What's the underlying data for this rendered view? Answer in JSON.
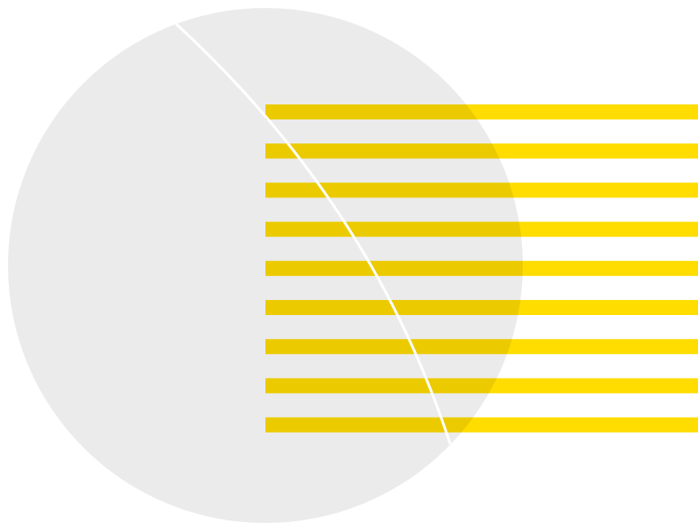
{
  "colors": {
    "background": "#ffffff",
    "circle_fill": "#000000",
    "circle_opacity": 0.08,
    "stripe": "#ffdd00",
    "arc_line": "#ffffff"
  },
  "stripes": {
    "count": 9
  }
}
